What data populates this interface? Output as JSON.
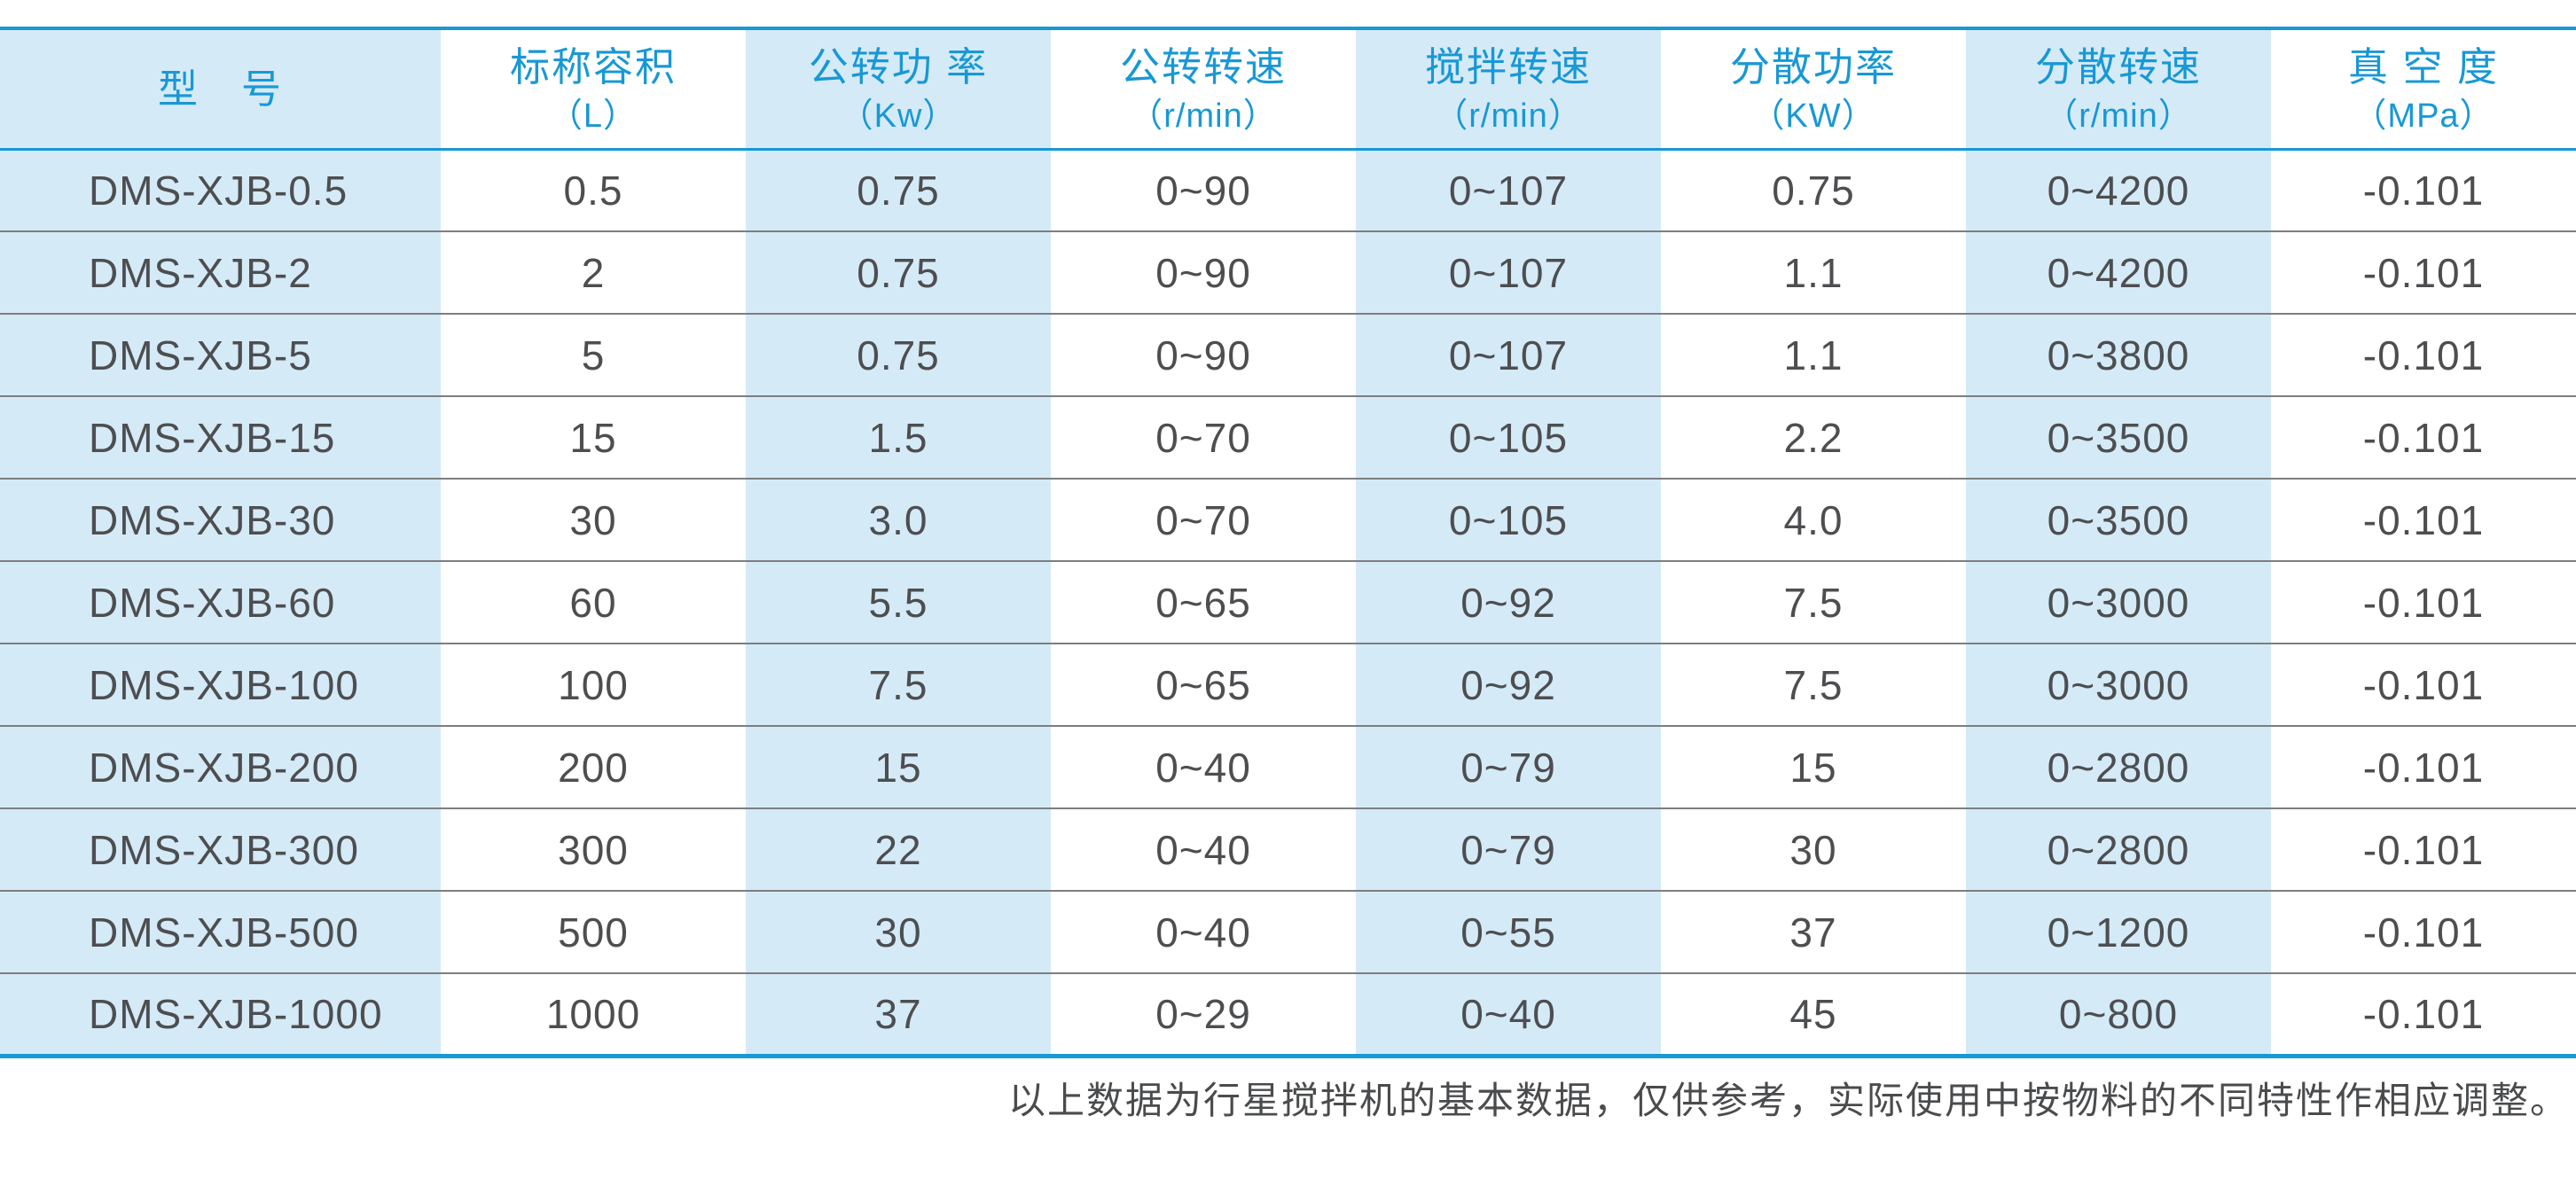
{
  "colors": {
    "accent": "#1898d5",
    "stripe": "#d5eaf7",
    "text": "#4d4e50",
    "separator": "#7d7e80"
  },
  "table": {
    "columns": [
      {
        "label": "型　号",
        "unit": ""
      },
      {
        "label": "标称容积",
        "unit": "（L）"
      },
      {
        "label": "公转功 率",
        "unit": "（Kw）"
      },
      {
        "label": "公转转速",
        "unit": "（r/min）"
      },
      {
        "label": "搅拌转速",
        "unit": "（r/min）"
      },
      {
        "label": "分散功率",
        "unit": "（KW）"
      },
      {
        "label": "分散转速",
        "unit": "（r/min）"
      },
      {
        "label": "真 空 度",
        "unit": "（MPa）"
      }
    ],
    "rows": [
      [
        "DMS-XJB-0.5",
        "0.5",
        "0.75",
        "0~90",
        "0~107",
        "0.75",
        "0~4200",
        "-0.101"
      ],
      [
        "DMS-XJB-2",
        "2",
        "0.75",
        "0~90",
        "0~107",
        "1.1",
        "0~4200",
        "-0.101"
      ],
      [
        "DMS-XJB-5",
        "5",
        "0.75",
        "0~90",
        "0~107",
        "1.1",
        "0~3800",
        "-0.101"
      ],
      [
        "DMS-XJB-15",
        "15",
        "1.5",
        "0~70",
        "0~105",
        "2.2",
        "0~3500",
        "-0.101"
      ],
      [
        "DMS-XJB-30",
        "30",
        "3.0",
        "0~70",
        "0~105",
        "4.0",
        "0~3500",
        "-0.101"
      ],
      [
        "DMS-XJB-60",
        "60",
        "5.5",
        "0~65",
        "0~92",
        "7.5",
        "0~3000",
        "-0.101"
      ],
      [
        "DMS-XJB-100",
        "100",
        "7.5",
        "0~65",
        "0~92",
        "7.5",
        "0~3000",
        "-0.101"
      ],
      [
        "DMS-XJB-200",
        "200",
        "15",
        "0~40",
        "0~79",
        "15",
        "0~2800",
        "-0.101"
      ],
      [
        "DMS-XJB-300",
        "300",
        "22",
        "0~40",
        "0~79",
        "30",
        "0~2800",
        "-0.101"
      ],
      [
        "DMS-XJB-500",
        "500",
        "30",
        "0~40",
        "0~55",
        "37",
        "0~1200",
        "-0.101"
      ],
      [
        "DMS-XJB-1000",
        "1000",
        "37",
        "0~29",
        "0~40",
        "45",
        "0~800",
        "-0.101"
      ]
    ]
  },
  "footnote": "以上数据为行星搅拌机的基本数据，仅供参考，实际使用中按物料的不同特性作相应调整。"
}
